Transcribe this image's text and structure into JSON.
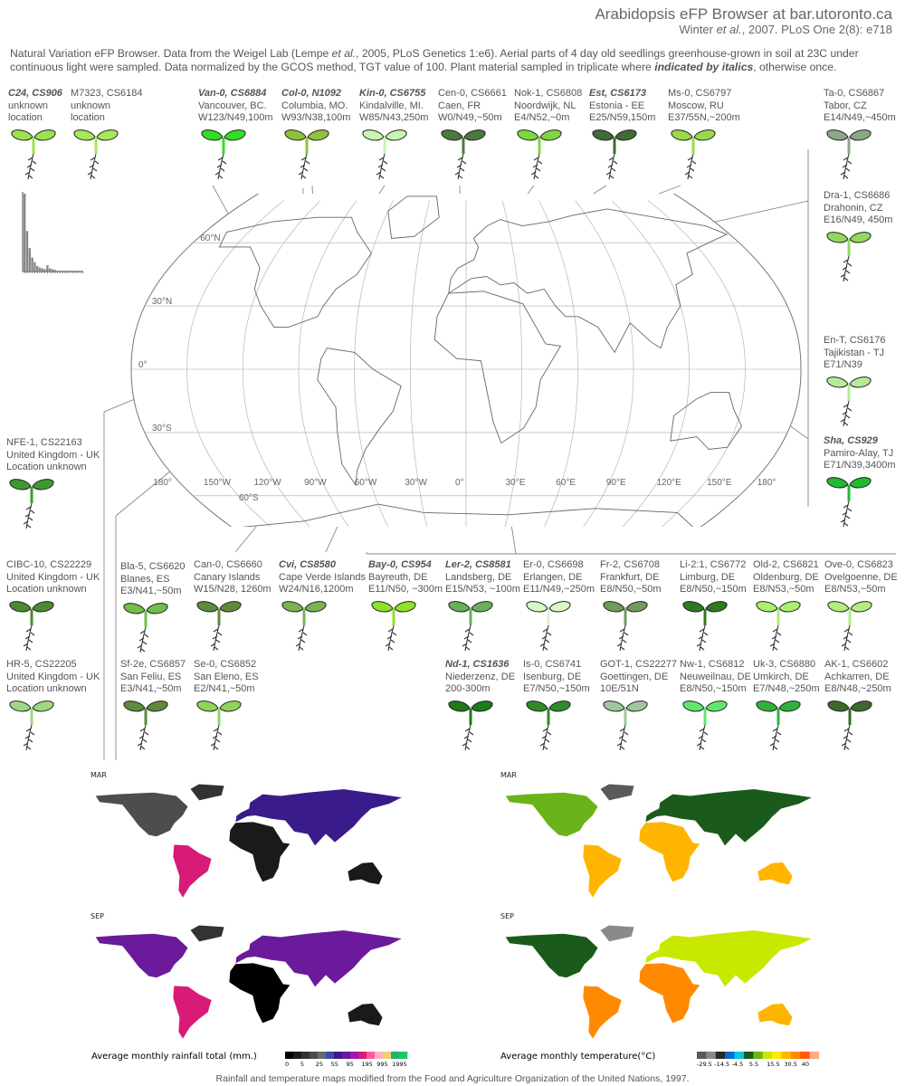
{
  "header": {
    "title": "Arabidopsis eFP Browser at bar.utoronto.ca",
    "cite_author": "Winter",
    "cite_etal": "et al.",
    "cite_rest": ", 2007. PLoS One 2(8): e718"
  },
  "intro": {
    "part1": "Natural Variation eFP Browser. Data from the Weigel Lab (Lempe ",
    "etal": "et al.",
    "part2": ", 2005, PLoS Genetics 1:e6). Aerial parts of 4 day old seedlings greenhouse-grown in soil at 23C under continuous light were sampled. Data normalized by the GCOS method, TGT value of 100. Plant material sampled in triplicate where ",
    "italic_note": "indicated by italics",
    "part3": ", otherwise once."
  },
  "accessions": [
    {
      "name": "C24, CS906",
      "italic": true,
      "lines": [
        "unknown",
        "location"
      ],
      "color": "#9be24c"
    },
    {
      "name": "M7323, CS6184",
      "italic": false,
      "lines": [
        "unknown",
        "location"
      ],
      "color": "#a6e95a"
    },
    {
      "name": "Van-0, CS6884",
      "italic": true,
      "lines": [
        "Vancouver, BC.",
        "W123/N49,100m"
      ],
      "color": "#33dd22"
    },
    {
      "name": "Col-0, N1092",
      "italic": true,
      "lines": [
        "Columbia, MO.",
        "W93/N38,100m"
      ],
      "color": "#8fc23c"
    },
    {
      "name": "Kin-0, CS6755",
      "italic": true,
      "lines": [
        "Kindalville, MI.",
        "W85/N43,250m"
      ],
      "color": "#c8f5b0"
    },
    {
      "name": "Cen-0, CS6661",
      "italic": false,
      "lines": [
        "Caen, FR",
        "W0/N49,~50m"
      ],
      "color": "#4a7a3a"
    },
    {
      "name": "Nok-1, CS6808",
      "italic": false,
      "lines": [
        "Noordwijk, NL",
        "E4/N52,~0m"
      ],
      "color": "#7ed640"
    },
    {
      "name": "Est, CS6173",
      "italic": true,
      "lines": [
        "Estonia - EE",
        "E25/N59,150m"
      ],
      "color": "#3f6b36"
    },
    {
      "name": "Ms-0, CS6797",
      "italic": false,
      "lines": [
        "Moscow, RU",
        "E37/55N,~200m"
      ],
      "color": "#9bd84a"
    },
    {
      "name": "Ta-0, CS6867",
      "italic": false,
      "lines": [
        "Tabor, CZ",
        "E14/N49,~450m"
      ],
      "color": "#8aa884"
    },
    {
      "name": "Dra-1, CS6686",
      "italic": false,
      "lines": [
        "Drahonin, CZ",
        "E16/N49, 450m"
      ],
      "color": "#93d85e"
    },
    {
      "name": "En-T, CS6176",
      "italic": false,
      "lines": [
        "Tajikistan - TJ",
        "E71/N39"
      ],
      "color": "#b5eb98"
    },
    {
      "name": "Sha, CS929",
      "italic": true,
      "lines": [
        "Pamiro-Alay, TJ",
        "E71/N39,3400m"
      ],
      "color": "#22b830"
    },
    {
      "name": "NFE-1, CS22163",
      "italic": false,
      "lines": [
        "United Kingdom - UK",
        "Location unknown"
      ],
      "color": "#3f9a2e"
    },
    {
      "name": "CIBC-10, CS22229",
      "italic": false,
      "lines": [
        "United Kingdom - UK",
        "Location unknown"
      ],
      "color": "#4a8a32"
    },
    {
      "name": "HR-5, CS22205",
      "italic": false,
      "lines": [
        "United Kingdom - UK",
        "Location unknown"
      ],
      "color": "#9ed884"
    },
    {
      "name": "Bla-5, CS6620",
      "italic": false,
      "lines": [
        "Blanes, ES",
        "E3/N41,~50m"
      ],
      "color": "#6fbf4a"
    },
    {
      "name": "Can-0, CS6660",
      "italic": false,
      "lines": [
        "Canary Islands",
        "W15/N28, 1260m"
      ],
      "color": "#5f8a3c"
    },
    {
      "name": "Cvi, CS8580",
      "italic": true,
      "lines": [
        "Cape Verde Islands",
        "W24/N16,1200m"
      ],
      "color": "#78b456"
    },
    {
      "name": "Bay-0, CS954",
      "italic": true,
      "lines": [
        "Bayreuth, DE",
        "E11/N50, ~300m"
      ],
      "color": "#8fe22a"
    },
    {
      "name": "Ler-2, CS8581",
      "italic": true,
      "lines": [
        "Landsberg, DE",
        "E15/N53, ~100m"
      ],
      "color": "#66b05a"
    },
    {
      "name": "Er-0, CS6698",
      "italic": false,
      "lines": [
        "Erlangen, DE",
        "E11/N49,~250m"
      ],
      "color": "#d8f8c6"
    },
    {
      "name": "Fr-2, CS6708",
      "italic": false,
      "lines": [
        "Frankfurt, DE",
        "E8/N50,~50m"
      ],
      "color": "#6f9c5a"
    },
    {
      "name": "Li-2:1, CS6772",
      "italic": false,
      "lines": [
        "Limburg, DE",
        "E8/N50,~150m"
      ],
      "color": "#2f7a1e"
    },
    {
      "name": "Old-2, CS6821",
      "italic": false,
      "lines": [
        "Oldenburg, DE",
        "E8/N53,~50m"
      ],
      "color": "#a9ef70"
    },
    {
      "name": "Ove-0, CS6823",
      "italic": false,
      "lines": [
        "Ovelgoenne, DE",
        "E8/N53,~50m"
      ],
      "color": "#b2ee7e"
    },
    {
      "name": "Sf-2e, CS6857",
      "italic": false,
      "lines": [
        "San Feliu, ES",
        "E3/N41,~50m"
      ],
      "color": "#5c8a3e"
    },
    {
      "name": "Se-0, CS6852",
      "italic": false,
      "lines": [
        "San Eleno, ES",
        "E2/N41,~50m"
      ],
      "color": "#8ed55a"
    },
    {
      "name": "Nd-1, CS1636",
      "italic": true,
      "lines": [
        "Niederzenz, DE",
        "200-300m"
      ],
      "color": "#1e7a1a"
    },
    {
      "name": "Is-0, CS6741",
      "italic": false,
      "lines": [
        "Isenburg, DE",
        "E7/N50,~150m"
      ],
      "color": "#2f8a28"
    },
    {
      "name": "GOT-1, CS22277",
      "italic": false,
      "lines": [
        "Goettingen, DE",
        "10E/51N"
      ],
      "color": "#9ec89a"
    },
    {
      "name": "Nw-1, CS6812",
      "italic": false,
      "lines": [
        "Neuweilnau, DE",
        "E8/N50,~150m"
      ],
      "color": "#5fe870"
    },
    {
      "name": "Uk-3, CS6880",
      "italic": false,
      "lines": [
        "Umkirch, DE",
        "E7/N48,~250m"
      ],
      "color": "#2fb23a"
    },
    {
      "name": "AK-1, CS6602",
      "italic": false,
      "lines": [
        "Achkarren, DE",
        "E8/N48,~250m"
      ],
      "color": "#3a6a2e"
    }
  ],
  "map": {
    "lat_labels": [
      "60°N",
      "30°N",
      "0°",
      "30°S",
      "60°S"
    ],
    "lon_labels": [
      "180°",
      "150°W",
      "120°W",
      "90°W",
      "60°W",
      "30°W",
      "0°",
      "30°E",
      "60°E",
      "90°E",
      "120°E",
      "150°E",
      "180°"
    ]
  },
  "histogram": {
    "values": [
      100,
      52,
      30,
      18,
      12,
      7,
      5,
      4,
      3,
      8,
      4,
      3,
      2,
      1,
      1,
      1,
      1,
      0,
      1,
      0,
      0,
      1,
      0,
      0
    ]
  },
  "climate": {
    "rain_mar_label": "MAR",
    "rain_sep_label": "SEP",
    "temp_mar_label": "MAR",
    "temp_sep_label": "SEP",
    "rain_caption": "Average monthly rainfall total (mm.)",
    "temp_caption": "Average monthly temperature(°C)",
    "rain_scale_labels": [
      "0",
      "5",
      "25",
      "55",
      "95",
      "195",
      "995",
      "1995"
    ],
    "temp_scale_labels": [
      "-29.5",
      "-14.5",
      "-4.5",
      "5.5",
      "15.5",
      "30.5",
      "40"
    ],
    "rain_colors": [
      "#000000",
      "#1a1a1a",
      "#333333",
      "#4d4d4d",
      "#6a6a6a",
      "#3b4aa8",
      "#3a1b8a",
      "#6a1a9a",
      "#9a1ab0",
      "#d81a78",
      "#ff5aa0",
      "#ffb0c8",
      "#f0d070",
      "#20b070",
      "#18c860"
    ],
    "temp_colors": [
      "#5a5a5a",
      "#8a8a8a",
      "#2a2a2a",
      "#0a6ad0",
      "#00c8e8",
      "#1a5a1a",
      "#6ab41a",
      "#c8e800",
      "#ffe800",
      "#ffb400",
      "#ff8a00",
      "#ff5a00",
      "#ffaa80"
    ]
  },
  "footer": {
    "text": "Rainfall and temperature maps modified from the Food and Agriculture Organization of the United Nations, 1997."
  }
}
